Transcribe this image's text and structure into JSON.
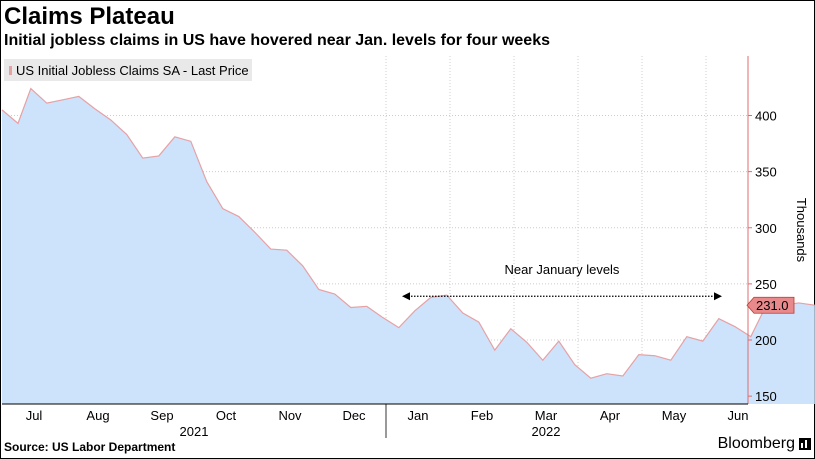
{
  "header": {
    "title": "Claims Plateau",
    "subtitle": "Initial jobless claims in US have hovered near Jan. levels for four weeks"
  },
  "footer": {
    "source": "Source: US Labor Department",
    "brand": "Bloomberg"
  },
  "colors": {
    "area_fill": "#cce3fb",
    "line": "#e6a1a5",
    "last_price_tag": "#e8898c",
    "right_axis": "#e06c6f",
    "grid": "#cccccc",
    "legend_bg": "#e9e9e9"
  },
  "chart_data": {
    "type": "area",
    "title": "Claims Plateau",
    "subtitle": "Initial jobless claims in US have hovered near Jan. levels for four weeks",
    "legend": [
      "US Initial Jobless Claims SA - Last Price"
    ],
    "legend_position": "top-left",
    "ylabel": "Thousands",
    "ylim": [
      143,
      453
    ],
    "yticks": [
      150,
      200,
      250,
      300,
      350,
      400
    ],
    "y_axis_side": "right",
    "grid": true,
    "last_value_label": "231.0",
    "x_months": [
      "Jul",
      "Aug",
      "Sep",
      "Oct",
      "Nov",
      "Dec",
      "Jan",
      "Feb",
      "Mar",
      "Apr",
      "May",
      "Jun"
    ],
    "x_years": [
      "2021",
      "2022"
    ],
    "x_month_positions": [
      0.5,
      1.5,
      2.5,
      3.5,
      4.5,
      5.5,
      6.5,
      7.5,
      8.5,
      9.5,
      10.5,
      11.5
    ],
    "x_year_positions": [
      3.0,
      8.5
    ],
    "x_gridlines": [
      6,
      7,
      8,
      9,
      10,
      11
    ],
    "annotation": {
      "text": "Near January levels",
      "x_start": 6.25,
      "x_end": 11.25,
      "y": 239
    },
    "series": [
      {
        "name": "US Initial Jobless Claims SA - Last Price",
        "x": [
          0.0,
          0.25,
          0.45,
          0.7,
          0.95,
          1.2,
          1.45,
          1.7,
          1.95,
          2.2,
          2.45,
          2.7,
          2.95,
          3.2,
          3.45,
          3.7,
          3.95,
          4.2,
          4.45,
          4.7,
          4.95,
          5.2,
          5.45,
          5.7,
          5.95,
          6.2,
          6.45,
          6.7,
          6.95,
          7.2,
          7.45,
          7.7,
          7.95,
          8.2,
          8.45,
          8.7,
          8.95,
          9.2,
          9.45,
          9.7,
          9.95,
          10.2,
          10.45,
          10.7,
          10.95,
          11.2,
          11.45,
          11.7,
          11.95
        ],
        "y": [
          405,
          393,
          424,
          411,
          414,
          417,
          406,
          396,
          383,
          362,
          364,
          381,
          377,
          341,
          317,
          310,
          296,
          281,
          280,
          266,
          245,
          241,
          229,
          230,
          220,
          211,
          226,
          238,
          240,
          224,
          216,
          191,
          210,
          198,
          182,
          199,
          178,
          166,
          170,
          168,
          187,
          186,
          182,
          203,
          199,
          219,
          212,
          203,
          232
        ]
      }
    ],
    "tail": {
      "x": [
        11.95,
        12.2,
        12.45,
        12.7
      ],
      "y": [
        232,
        231,
        233,
        231
      ]
    }
  }
}
